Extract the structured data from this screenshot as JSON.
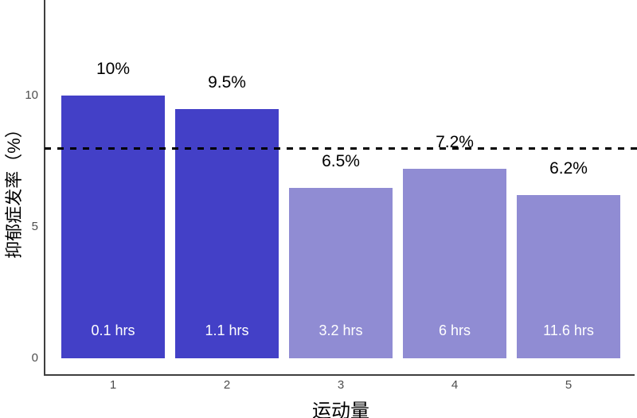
{
  "chart_data": {
    "type": "bar",
    "title": "",
    "xlabel": "运动量",
    "ylabel": "抑郁症发率（%）",
    "categories": [
      "1",
      "2",
      "3",
      "4",
      "5"
    ],
    "values": [
      10,
      9.5,
      6.5,
      7.2,
      6.2
    ],
    "value_labels": [
      "10%",
      "9.5%",
      "6.5%",
      "7.2%",
      "6.2%"
    ],
    "bar_inner_labels": [
      "0.1 hrs",
      "1.1 hrs",
      "3.2 hrs",
      "6 hrs",
      "11.6 hrs"
    ],
    "bar_colors": [
      "#4340C7",
      "#4340C7",
      "#908CD3",
      "#908CD3",
      "#908CD3"
    ],
    "y_ticks": [
      {
        "label": "0",
        "value": 0
      },
      {
        "label": "5",
        "value": 5
      },
      {
        "label": "10",
        "value": 10
      }
    ],
    "reference_line": {
      "value": 8,
      "style": "dashed",
      "color": "#000000"
    },
    "ylim": [
      0,
      13.6
    ],
    "grid": false,
    "legend": false,
    "colors": {
      "dark_bar": "#4340C7",
      "light_bar": "#908CD3",
      "axis_line": "#3f3f3f",
      "tick_text": "#4d4d4d",
      "value_label_text": "#000000",
      "inner_label_text": "#ffffff",
      "reference_line": "#000000",
      "background": "#ffffff"
    }
  }
}
